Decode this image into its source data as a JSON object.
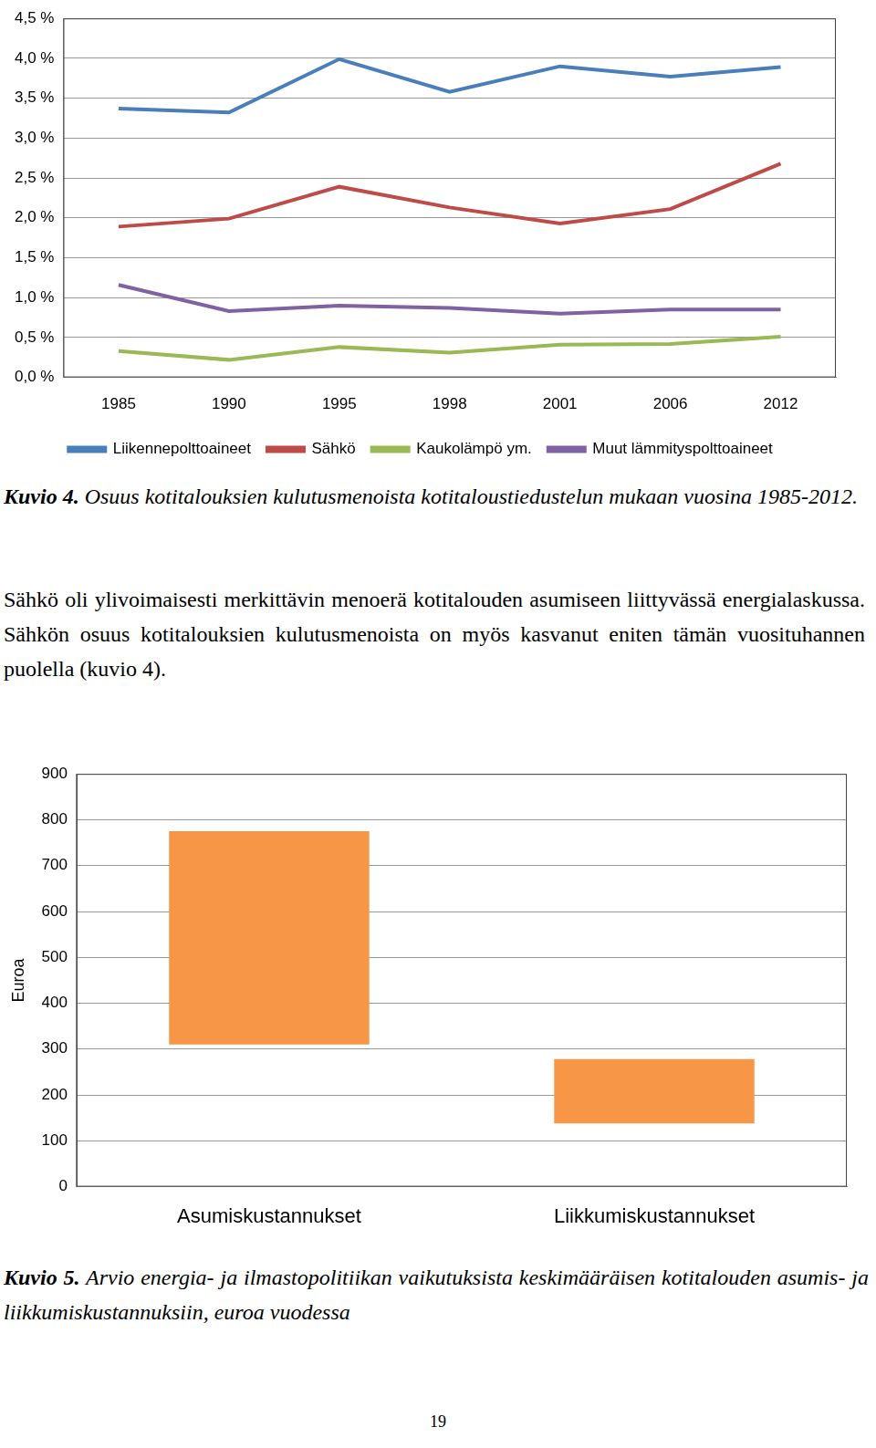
{
  "chart_data": [
    {
      "type": "line",
      "categories": [
        "1985",
        "1990",
        "1995",
        "1998",
        "2001",
        "2006",
        "2012"
      ],
      "series": [
        {
          "name": "Liikennepolttoaineet",
          "color": "#4a7ebb",
          "values": [
            3.37,
            3.32,
            3.99,
            3.58,
            3.9,
            3.77,
            3.89
          ]
        },
        {
          "name": "Sähkö",
          "color": "#be4b48",
          "values": [
            1.89,
            1.99,
            2.39,
            2.13,
            1.93,
            2.11,
            2.68
          ]
        },
        {
          "name": "Kaukolämpö ym.",
          "color": "#98b954",
          "values": [
            0.33,
            0.22,
            0.38,
            0.31,
            0.41,
            0.42,
            0.51
          ]
        },
        {
          "name": "Muut lämmityspolttoaineet",
          "color": "#7e62a1",
          "values": [
            1.16,
            0.83,
            0.9,
            0.87,
            0.8,
            0.85,
            0.85
          ]
        }
      ],
      "ylim": [
        0,
        4.5
      ],
      "yticks": [
        {
          "value": 0,
          "label": "0,0 %"
        },
        {
          "value": 0.5,
          "label": "0,5 %"
        },
        {
          "value": 1,
          "label": "1,0 %"
        },
        {
          "value": 1.5,
          "label": "1,5 %"
        },
        {
          "value": 2,
          "label": "2,0 %"
        },
        {
          "value": 2.5,
          "label": "2,5 %"
        },
        {
          "value": 3,
          "label": "3,0 %"
        },
        {
          "value": 3.5,
          "label": "3,5 %"
        },
        {
          "value": 4,
          "label": "4,0 %"
        },
        {
          "value": 4.5,
          "label": "4,5 %"
        }
      ],
      "grid": true,
      "legend": "bottom"
    },
    {
      "type": "bar",
      "categories": [
        "Asumiskustannukset",
        "Liikkumiskustannukset"
      ],
      "values": [
        [
          310,
          775
        ],
        [
          138,
          278
        ]
      ],
      "color": "#f79646",
      "y_label": "Euroa",
      "ylim": [
        0,
        900
      ],
      "yticks": [
        0,
        100,
        200,
        300,
        400,
        500,
        600,
        700,
        800,
        900
      ],
      "grid": true
    }
  ],
  "document": {
    "figures": [
      {
        "label": "Kuvio 4.",
        "caption": "Osuus kotitalouksien kulutusmenoista kotitaloustiedustelun mukaan vuosina 1985-2012."
      },
      {
        "label": "Kuvio 5.",
        "caption": "Arvio energia- ja ilmastopolitiikan vaikutuksista keskimääräisen kotitalouden asumis- ja liikkumiskustannuksiin, euroa vuodessa"
      }
    ],
    "paragraph": "Sähkö oli ylivoimaisesti merkittävin menoerä kotitalouden asumiseen liittyvässä energialaskussa. Sähkön osuus kotitalouksien kulutusmenoista on myös kasvanut eniten tämän vuosituhannen puolella (kuvio 4).",
    "page_number": 19
  }
}
